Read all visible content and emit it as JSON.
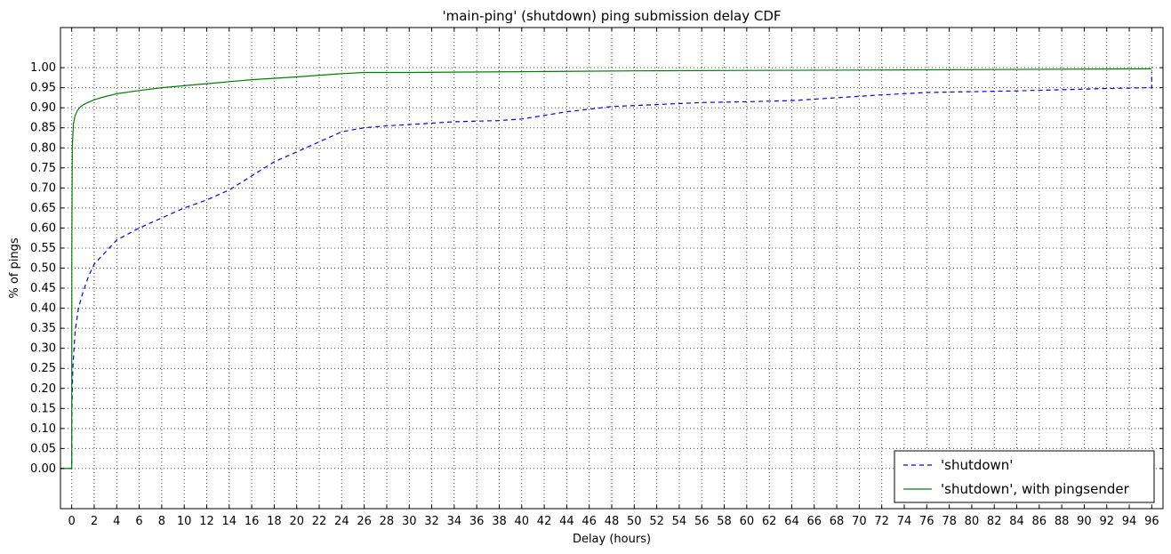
{
  "chart_data": {
    "type": "line",
    "title": "'main-ping' (shutdown) ping submission delay CDF",
    "xlabel": "Delay (hours)",
    "ylabel": "% of pings",
    "xlim": [
      -1,
      97
    ],
    "ylim": [
      -0.1,
      1.1
    ],
    "x_ticks": [
      0,
      2,
      4,
      6,
      8,
      10,
      12,
      14,
      16,
      18,
      20,
      22,
      24,
      26,
      28,
      30,
      32,
      34,
      36,
      38,
      40,
      42,
      44,
      46,
      48,
      50,
      52,
      54,
      56,
      58,
      60,
      62,
      64,
      66,
      68,
      70,
      72,
      74,
      76,
      78,
      80,
      82,
      84,
      86,
      88,
      90,
      92,
      94,
      96
    ],
    "y_ticks": [
      0.0,
      0.05,
      0.1,
      0.15,
      0.2,
      0.25,
      0.3,
      0.35,
      0.4,
      0.45,
      0.5,
      0.55,
      0.6,
      0.65,
      0.7,
      0.75,
      0.8,
      0.85,
      0.9,
      0.95,
      1.0
    ],
    "y_tick_labels": [
      "0.00",
      "0.05",
      "0.10",
      "0.15",
      "0.20",
      "0.25",
      "0.30",
      "0.35",
      "0.40",
      "0.45",
      "0.50",
      "0.55",
      "0.60",
      "0.65",
      "0.70",
      "0.75",
      "0.80",
      "0.85",
      "0.90",
      "0.95",
      "1.00"
    ],
    "grid": true,
    "legend_position": "lower-right",
    "series": [
      {
        "name": "'shutdown'",
        "color": "#0000ff",
        "style": "dashed",
        "x": [
          -1,
          0,
          0.02,
          0.1,
          0.3,
          0.6,
          1,
          1.5,
          2,
          3,
          4,
          5,
          6,
          8,
          10,
          12,
          14,
          16,
          18,
          20,
          22,
          24,
          26,
          28,
          30,
          34,
          38,
          40,
          44,
          48,
          52,
          56,
          60,
          64,
          68,
          72,
          76,
          80,
          84,
          88,
          92,
          96,
          96
        ],
        "y": [
          0,
          0,
          0.15,
          0.25,
          0.34,
          0.4,
          0.44,
          0.48,
          0.51,
          0.54,
          0.57,
          0.585,
          0.6,
          0.625,
          0.65,
          0.67,
          0.695,
          0.73,
          0.765,
          0.79,
          0.815,
          0.84,
          0.85,
          0.855,
          0.858,
          0.865,
          0.868,
          0.872,
          0.89,
          0.903,
          0.908,
          0.913,
          0.915,
          0.918,
          0.925,
          0.932,
          0.938,
          0.94,
          0.942,
          0.945,
          0.948,
          0.95,
          0.99
        ]
      },
      {
        "name": "'shutdown', with pingsender",
        "color": "#008000",
        "style": "solid",
        "x": [
          -1,
          0,
          0.01,
          0.05,
          0.15,
          0.3,
          0.5,
          0.8,
          1.2,
          2,
          3,
          4,
          6,
          8,
          10,
          12,
          16,
          20,
          24,
          26,
          30,
          40,
          50,
          60,
          70,
          80,
          96
        ],
        "y": [
          0,
          0,
          0.55,
          0.8,
          0.86,
          0.88,
          0.893,
          0.903,
          0.91,
          0.92,
          0.928,
          0.935,
          0.943,
          0.95,
          0.955,
          0.96,
          0.97,
          0.977,
          0.985,
          0.988,
          0.988,
          0.99,
          0.992,
          0.993,
          0.994,
          0.995,
          0.997
        ]
      }
    ]
  }
}
